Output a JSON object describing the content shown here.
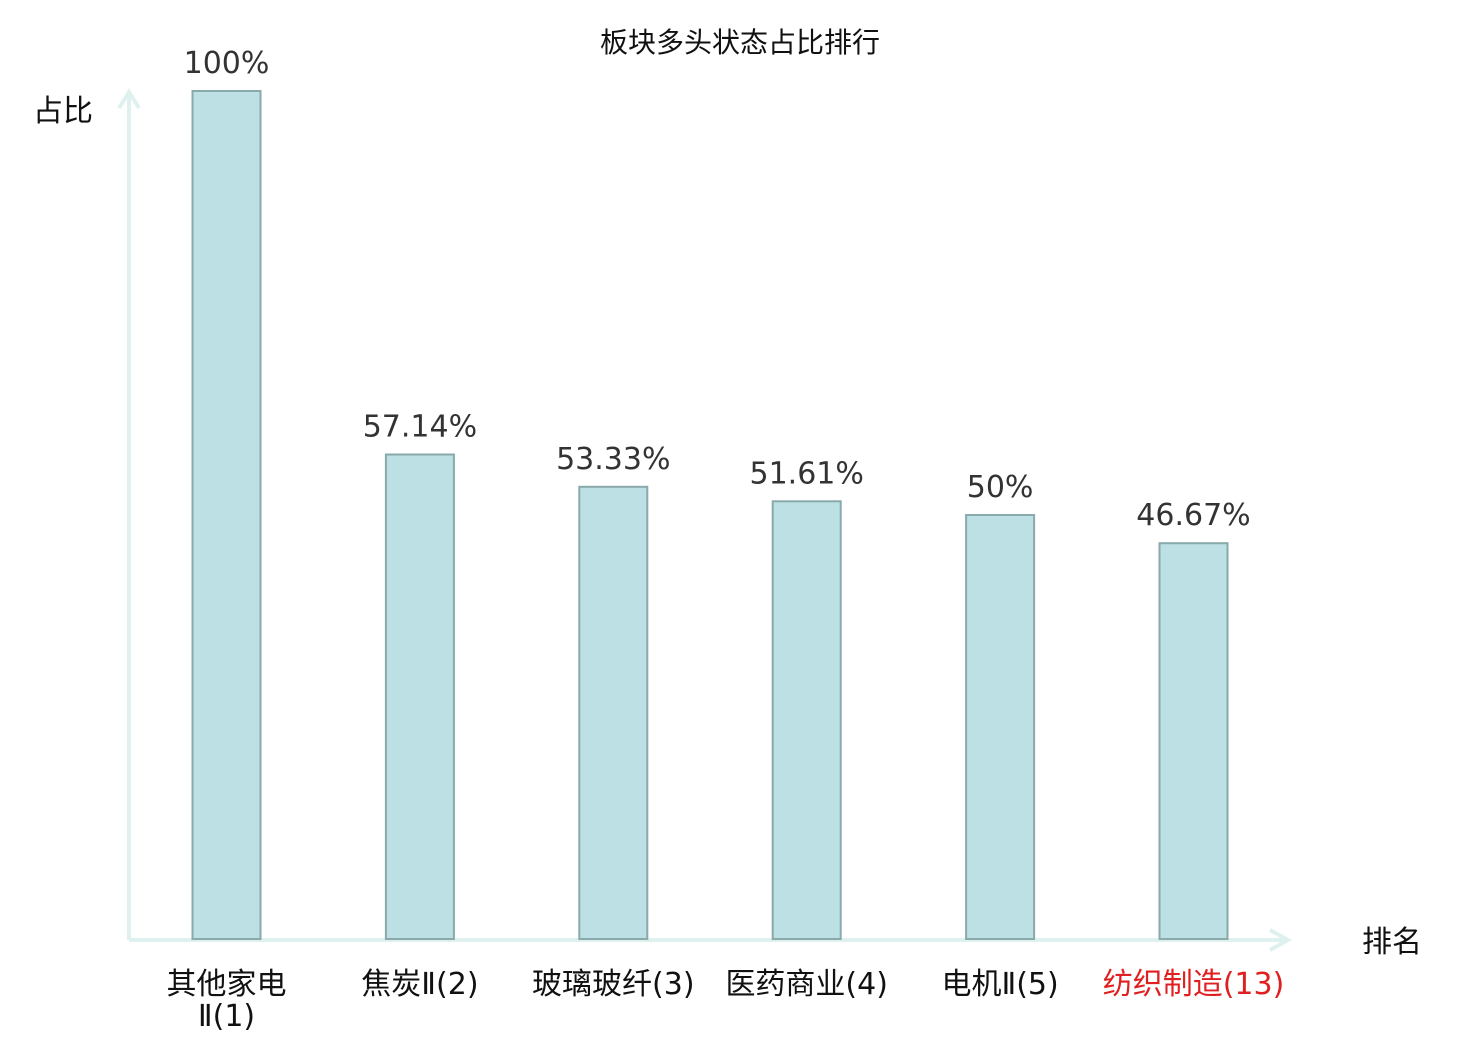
{
  "chart_data": {
    "type": "bar",
    "title": "板块多头状态占比排行",
    "ylabel": "占比",
    "xlabel": "排名",
    "ylim": [
      0,
      100
    ],
    "grid": false,
    "categories": [
      "其他家电Ⅱ(1)",
      "焦炭Ⅱ(2)",
      "玻璃玻纤(3)",
      "医药商业(4)",
      "电机Ⅱ(5)",
      "纺织制造(13)"
    ],
    "category_lines": [
      [
        "其他家电",
        "Ⅱ(1)"
      ],
      [
        "焦炭Ⅱ(2)"
      ],
      [
        "玻璃玻纤(3)"
      ],
      [
        "医药商业(4)"
      ],
      [
        "电机Ⅱ(5)"
      ],
      [
        "纺织制造(13)"
      ]
    ],
    "values": [
      100,
      57.14,
      53.33,
      51.61,
      50,
      46.67
    ],
    "value_labels": [
      "100%",
      "57.14%",
      "53.33%",
      "51.61%",
      "50%",
      "46.67%"
    ],
    "highlight_index": 5
  },
  "colors": {
    "bar_fill": "#bce0e3",
    "bar_stroke": "#8aa9aa",
    "axis": "#dff1ef",
    "category_text": "#111111",
    "highlight_text": "#e02020",
    "value_text": "#333333"
  }
}
